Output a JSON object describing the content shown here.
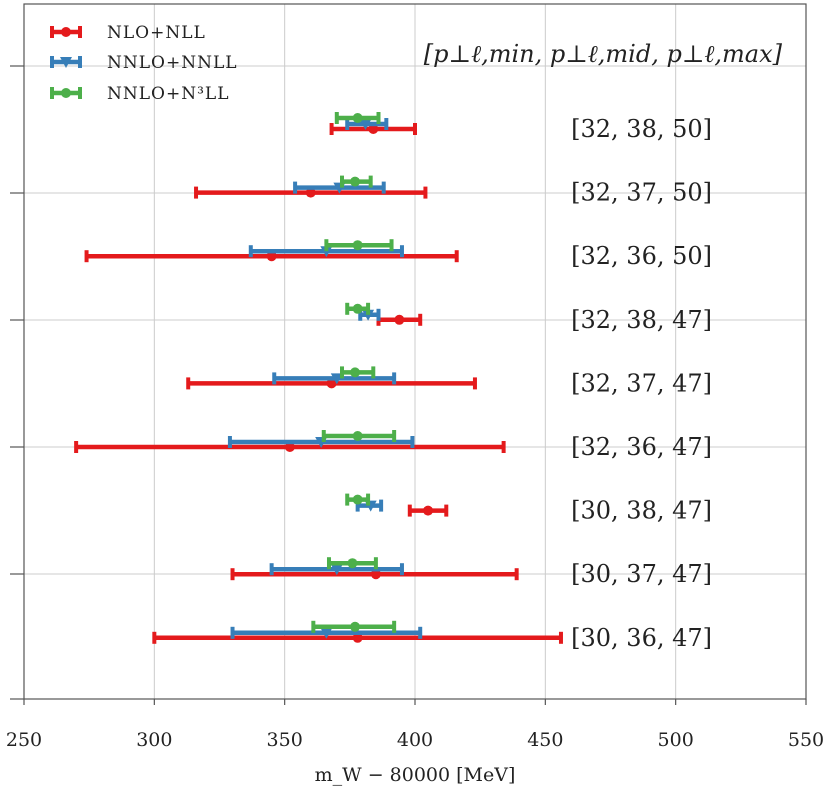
{
  "chart_data": {
    "type": "errorbar",
    "xlabel": "m_W − 80000 [MeV]",
    "xlim": [
      250,
      550
    ],
    "xticks": [
      250,
      300,
      350,
      400,
      450,
      500,
      550
    ],
    "x_tick_labels": [
      "250",
      "300",
      "350",
      "400",
      "450",
      "500",
      "550"
    ],
    "grid": true,
    "legend_position": "top-left",
    "header": "[p⊥ℓ,min, p⊥ℓ,mid, p⊥ℓ,max]",
    "categories": [
      "[32, 38, 50]",
      "[32, 37, 50]",
      "[32, 36, 50]",
      "[32, 38, 47]",
      "[32, 37, 47]",
      "[32, 36, 47]",
      "[30, 38, 47]",
      "[30, 37, 47]",
      "[30, 36, 47]"
    ],
    "series": [
      {
        "name": "NLO+NLL",
        "color": "#e41a1c",
        "marker": "circle",
        "centers": [
          384,
          360,
          345,
          394,
          368,
          352,
          405,
          385,
          378
        ],
        "lows": [
          368,
          316,
          274,
          386,
          313,
          270,
          398,
          330,
          300
        ],
        "highs": [
          400,
          404,
          416,
          402,
          423,
          434,
          412,
          439,
          456
        ]
      },
      {
        "name": "NNLO+NNLL",
        "color": "#377eb8",
        "marker": "triangle-down",
        "centers": [
          381,
          371,
          366,
          382,
          370,
          364,
          383,
          370,
          366
        ],
        "lows": [
          374,
          354,
          337,
          379,
          346,
          329,
          378,
          345,
          330
        ],
        "highs": [
          389,
          388,
          395,
          386,
          392,
          399,
          387,
          395,
          402
        ]
      },
      {
        "name": "NNLO+N³LL",
        "color": "#4daf4a",
        "marker": "circle",
        "centers": [
          378,
          377,
          378,
          378,
          377,
          378,
          378,
          376,
          377
        ],
        "lows": [
          370,
          372,
          366,
          374,
          372,
          365,
          374,
          367,
          361
        ],
        "highs": [
          386,
          383,
          391,
          382,
          384,
          392,
          382,
          385,
          392
        ]
      }
    ]
  }
}
